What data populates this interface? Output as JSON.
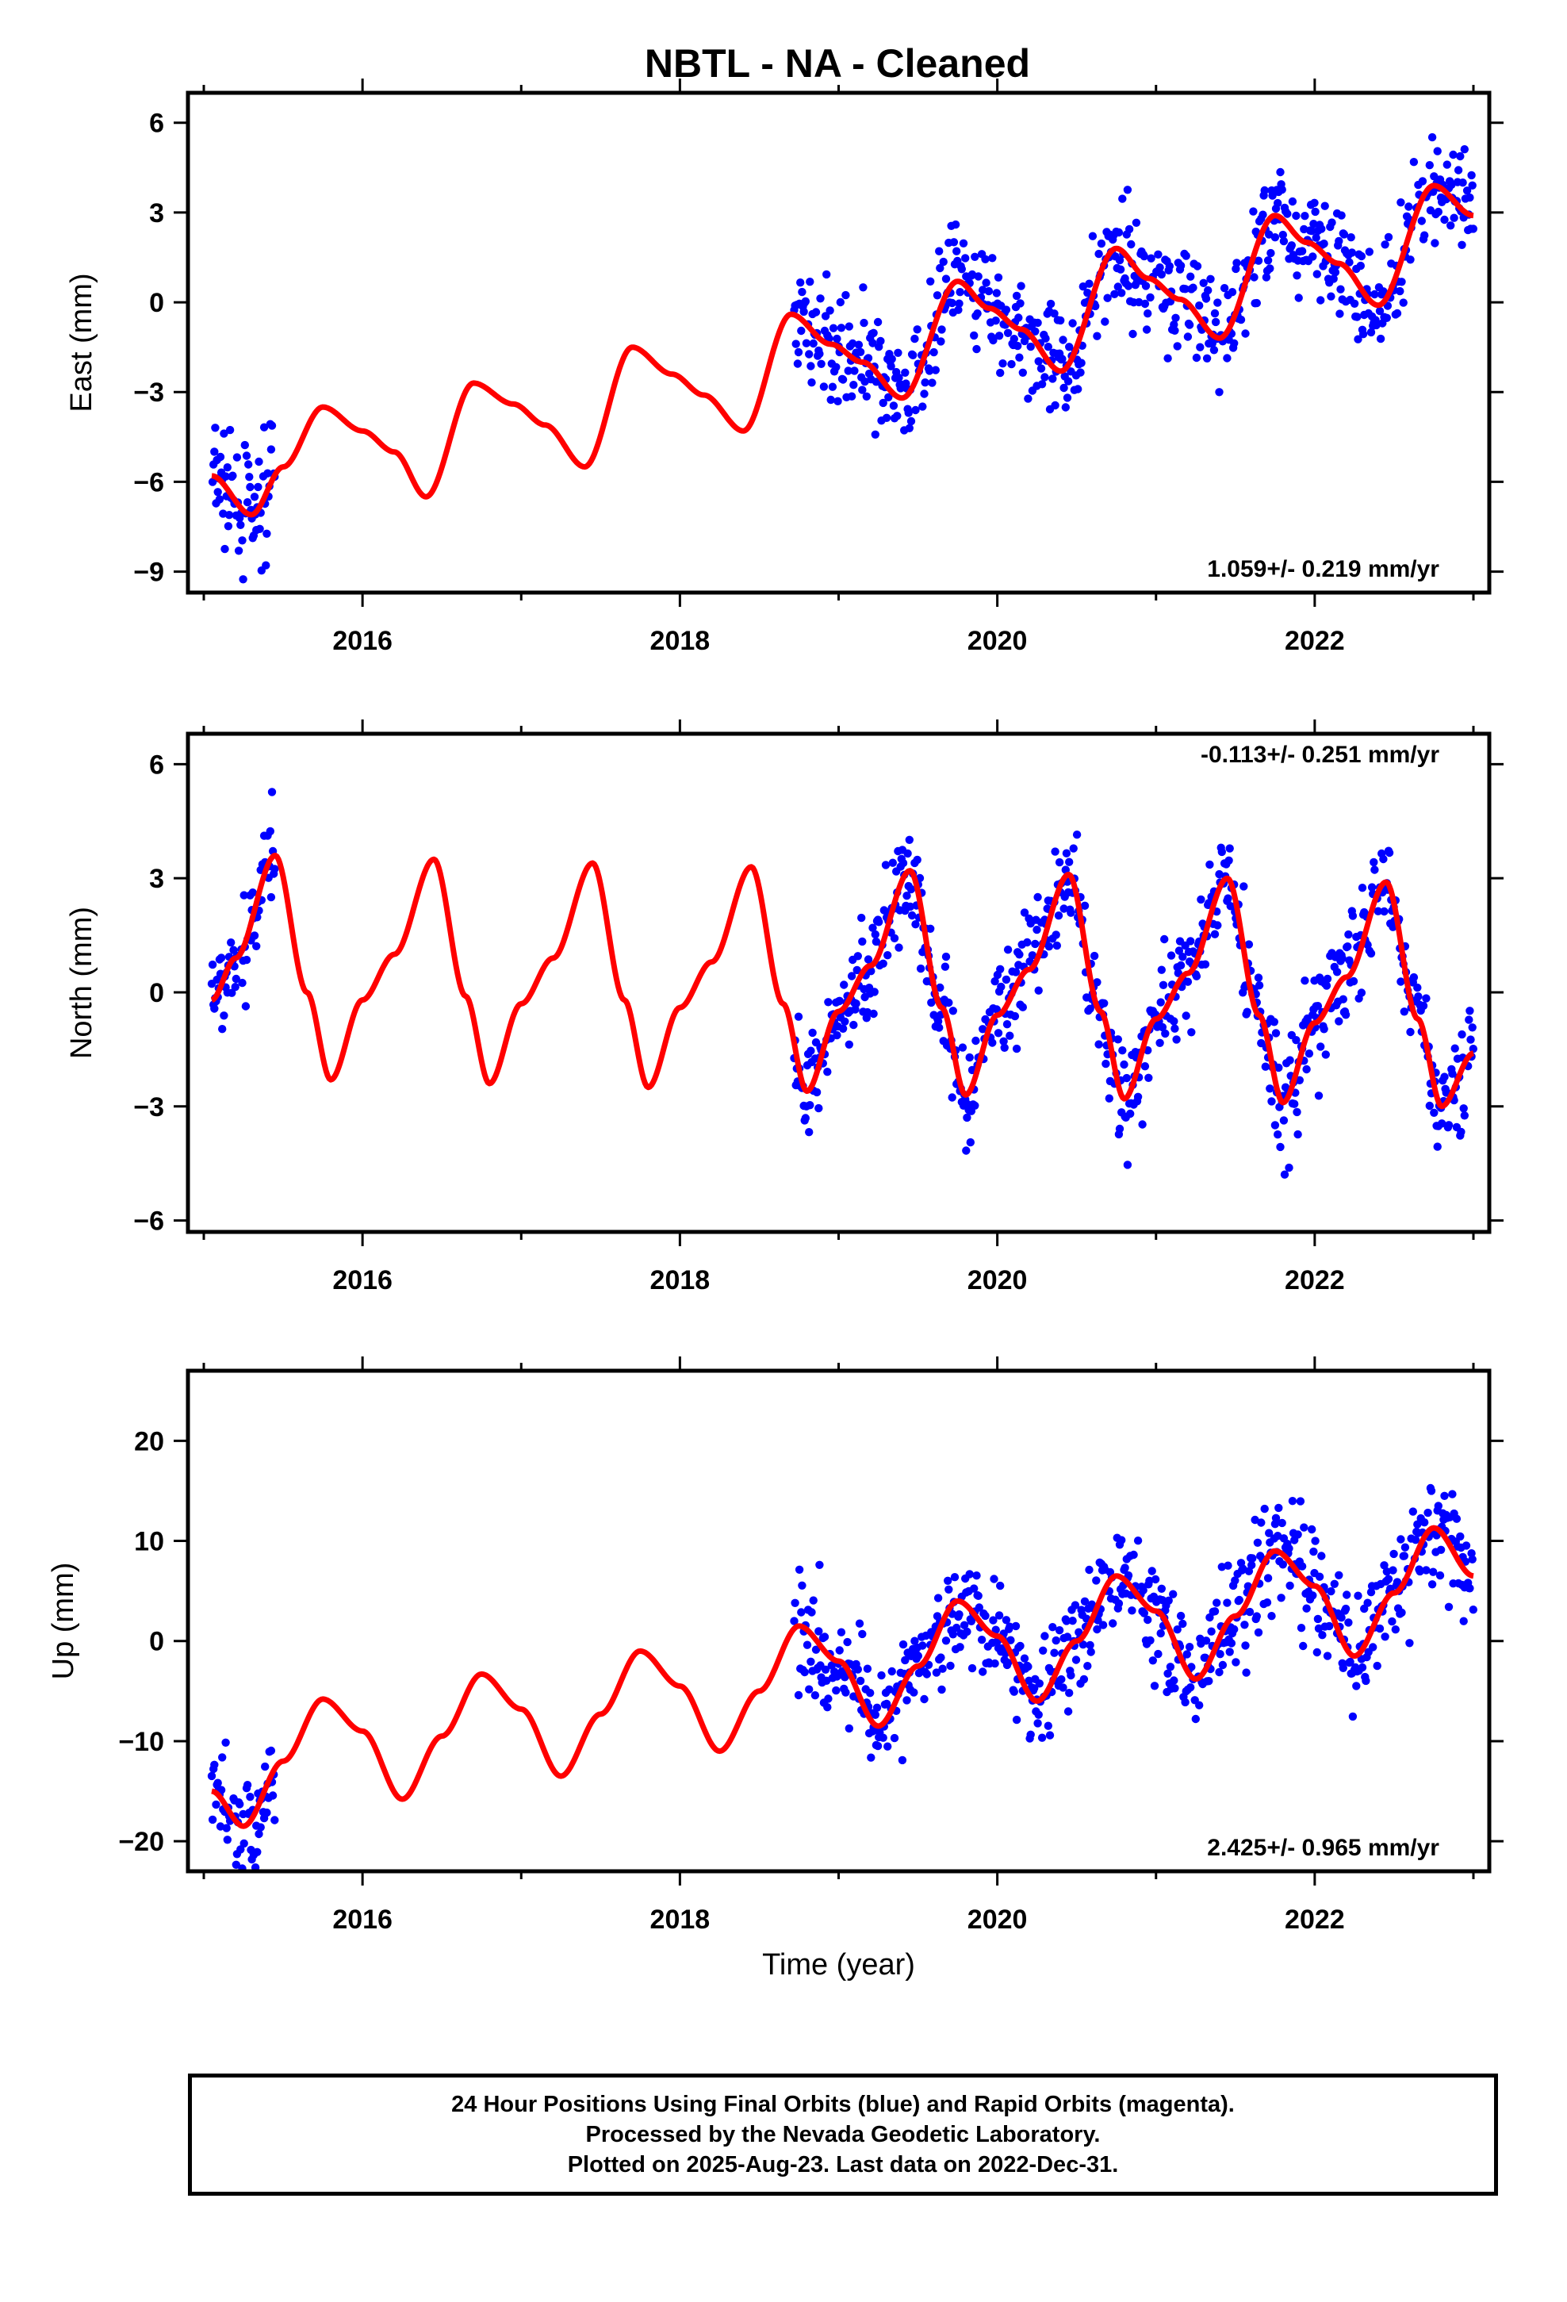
{
  "title": "NBTL  - NA - Cleaned",
  "caption": {
    "line1": "24 Hour Positions Using Final Orbits (blue) and Rapid Orbits (magenta).",
    "line2": "Processed by the Nevada Geodetic Laboratory.",
    "line3": "Plotted on 2025-Aug-23. Last data on 2022-Dec-31."
  },
  "colors": {
    "data": "#0000ff",
    "model": "#ff0000",
    "frame": "#000000"
  },
  "chart_data": [
    {
      "type": "scatter",
      "ylabel": "East (mm)",
      "xlabel": "",
      "xlim": [
        2014.9,
        2023.1
      ],
      "ylim": [
        -9.7,
        7
      ],
      "xticks": [
        2016,
        2018,
        2020,
        2022
      ],
      "yticks": [
        -9,
        -6,
        -3,
        0,
        3,
        6
      ],
      "rate_text": "1.059+/- 0.219 mm/yr",
      "rate_position": "bottom-right",
      "series": [
        {
          "kind": "points",
          "color": "#0000ff",
          "segments": [
            [
              2015.05,
              2015.45
            ],
            [
              2018.72,
              2023.0
            ]
          ]
        },
        {
          "kind": "model",
          "color": "#ff0000",
          "x": [
            2015.05,
            2015.3,
            2015.5,
            2015.75,
            2016.0,
            2016.2,
            2016.4,
            2016.7,
            2016.95,
            2017.15,
            2017.4,
            2017.7,
            2017.95,
            2018.15,
            2018.4,
            2018.7,
            2018.95,
            2019.15,
            2019.4,
            2019.75,
            2019.95,
            2020.15,
            2020.4,
            2020.75,
            2020.95,
            2021.15,
            2021.4,
            2021.75,
            2021.95,
            2022.15,
            2022.4,
            2022.75,
            2023.0
          ],
          "y": [
            -5.8,
            -7.1,
            -5.5,
            -3.5,
            -4.3,
            -5.0,
            -6.5,
            -2.7,
            -3.4,
            -4.1,
            -5.5,
            -1.5,
            -2.4,
            -3.1,
            -4.3,
            -0.4,
            -1.4,
            -2.0,
            -3.2,
            0.7,
            -0.2,
            -0.9,
            -2.3,
            1.8,
            0.8,
            0.1,
            -1.2,
            2.9,
            2.0,
            1.3,
            -0.1,
            3.9,
            2.9
          ]
        }
      ]
    },
    {
      "type": "scatter",
      "ylabel": "North (mm)",
      "xlabel": "",
      "xlim": [
        2014.9,
        2023.1
      ],
      "ylim": [
        -6.3,
        6.8
      ],
      "xticks": [
        2016,
        2018,
        2020,
        2022
      ],
      "yticks": [
        -6,
        -3,
        0,
        3,
        6
      ],
      "rate_text": "-0.113+/- 0.251 mm/yr",
      "rate_position": "top-right",
      "series": [
        {
          "kind": "points",
          "color": "#0000ff",
          "segments": [
            [
              2015.05,
              2015.45
            ],
            [
              2018.72,
              2023.0
            ]
          ]
        },
        {
          "kind": "model",
          "color": "#ff0000",
          "x": [
            2015.05,
            2015.2,
            2015.45,
            2015.65,
            2015.8,
            2016.0,
            2016.2,
            2016.45,
            2016.65,
            2016.8,
            2017.0,
            2017.2,
            2017.45,
            2017.65,
            2017.8,
            2018.0,
            2018.2,
            2018.45,
            2018.65,
            2018.8,
            2019.0,
            2019.2,
            2019.45,
            2019.65,
            2019.8,
            2020.0,
            2020.2,
            2020.45,
            2020.65,
            2020.8,
            2021.0,
            2021.2,
            2021.45,
            2021.65,
            2021.8,
            2022.0,
            2022.2,
            2022.45,
            2022.65,
            2022.8,
            2023.0
          ],
          "y": [
            -0.2,
            0.9,
            3.6,
            0.0,
            -2.3,
            -0.2,
            1.0,
            3.5,
            -0.1,
            -2.4,
            -0.3,
            0.9,
            3.4,
            -0.2,
            -2.5,
            -0.4,
            0.8,
            3.3,
            -0.3,
            -2.6,
            -0.5,
            0.7,
            3.2,
            -0.4,
            -2.7,
            -0.6,
            0.6,
            3.1,
            -0.5,
            -2.8,
            -0.7,
            0.5,
            3.0,
            -0.6,
            -2.9,
            -0.8,
            0.4,
            2.9,
            -0.7,
            -3.0,
            -1.6
          ]
        }
      ]
    },
    {
      "type": "scatter",
      "ylabel": "Up (mm)",
      "xlabel": "Time (year)",
      "xlim": [
        2014.9,
        2023.1
      ],
      "ylim": [
        -23,
        27
      ],
      "xticks": [
        2016,
        2018,
        2020,
        2022
      ],
      "yticks": [
        -20,
        -10,
        0,
        10,
        20
      ],
      "rate_text": "2.425+/- 0.965 mm/yr",
      "rate_position": "bottom-right",
      "series": [
        {
          "kind": "points",
          "color": "#0000ff",
          "segments": [
            [
              2015.05,
              2015.45
            ],
            [
              2018.72,
              2023.0
            ]
          ]
        },
        {
          "kind": "model",
          "color": "#ff0000",
          "x": [
            2015.05,
            2015.25,
            2015.5,
            2015.75,
            2016.0,
            2016.25,
            2016.5,
            2016.75,
            2017.0,
            2017.25,
            2017.5,
            2017.75,
            2018.0,
            2018.25,
            2018.5,
            2018.75,
            2019.0,
            2019.25,
            2019.5,
            2019.75,
            2020.0,
            2020.25,
            2020.5,
            2020.75,
            2021.0,
            2021.25,
            2021.5,
            2021.75,
            2022.0,
            2022.25,
            2022.5,
            2022.75,
            2023.0
          ],
          "y": [
            -15,
            -18.5,
            -12,
            -5.8,
            -9,
            -15.8,
            -9.5,
            -3.3,
            -6.8,
            -13.5,
            -7.3,
            -1,
            -4.5,
            -11,
            -5,
            1.5,
            -2,
            -8.5,
            -2.5,
            4,
            0.5,
            -6,
            0,
            6.5,
            3,
            -3.8,
            2.5,
            9,
            5.5,
            -1.5,
            4.8,
            11.3,
            6.5
          ]
        }
      ]
    }
  ]
}
